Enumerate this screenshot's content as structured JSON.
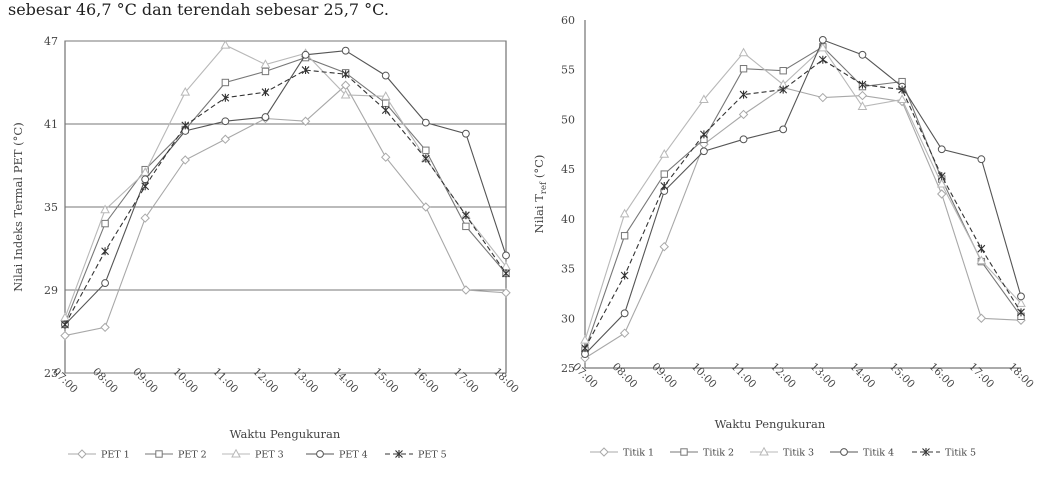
{
  "caption": "sebesar 46,7 °C dan terendah sebesar 25,7 °C.",
  "chart_data": [
    {
      "type": "line",
      "xlabel": "Waktu Pengukuran",
      "ylabel": "Nilai Indeks Termal PET (°C)",
      "categories": [
        "07:00",
        "08:00",
        "09:00",
        "10:00",
        "11:00",
        "12:00",
        "13:00",
        "14:00",
        "15:00",
        "16:00",
        "17:00",
        "18:00"
      ],
      "ylim": [
        23,
        47
      ],
      "yticks": [
        "23",
        "29",
        "35",
        "41",
        "47"
      ],
      "grid": true,
      "legend_position": "bottom",
      "series": [
        {
          "name": "PET 1",
          "marker": "diamond",
          "dash": "solid",
          "color": "#a8a8a8",
          "values": [
            25.7,
            26.3,
            34.2,
            38.4,
            39.9,
            41.4,
            41.2,
            43.8,
            38.6,
            35.0,
            29.0,
            28.8
          ]
        },
        {
          "name": "PET 2",
          "marker": "square",
          "dash": "solid",
          "color": "#777777",
          "values": [
            26.6,
            33.8,
            37.7,
            40.6,
            44.0,
            44.8,
            45.8,
            44.7,
            42.5,
            39.1,
            33.6,
            30.2
          ]
        },
        {
          "name": "PET 3",
          "marker": "triangle",
          "dash": "solid",
          "color": "#b8b8b8",
          "values": [
            27.0,
            34.8,
            37.5,
            43.3,
            46.7,
            45.3,
            46.1,
            43.1,
            43.0,
            38.5,
            34.4,
            30.7
          ]
        },
        {
          "name": "PET 4",
          "marker": "circle",
          "dash": "solid",
          "color": "#555555",
          "values": [
            26.5,
            29.5,
            37.0,
            40.5,
            41.2,
            41.5,
            46.0,
            46.3,
            44.5,
            41.1,
            40.3,
            31.5
          ]
        },
        {
          "name": "PET 5",
          "marker": "star",
          "dash": "dashed",
          "color": "#333333",
          "values": [
            26.5,
            31.8,
            36.5,
            40.9,
            42.9,
            43.3,
            44.9,
            44.6,
            42.0,
            38.5,
            34.4,
            30.2
          ]
        }
      ]
    },
    {
      "type": "line",
      "xlabel": "Waktu Pengukuran",
      "ylabel": "Nilai T",
      "ylabel_sub": "ref",
      "ylabel_unit": " (°C)",
      "categories": [
        "07:00",
        "08:00",
        "09:00",
        "10:00",
        "11:00",
        "12:00",
        "13:00",
        "14:00",
        "15:00",
        "16:00",
        "17:00",
        "18:00"
      ],
      "ylim": [
        25,
        60
      ],
      "yticks": [
        "25",
        "30",
        "35",
        "40",
        "45",
        "50",
        "55",
        "60"
      ],
      "grid": false,
      "legend_position": "bottom",
      "series": [
        {
          "name": "Titik 1",
          "marker": "diamond",
          "dash": "solid",
          "color": "#a8a8a8",
          "values": [
            26.0,
            28.5,
            37.2,
            47.5,
            50.5,
            53.2,
            52.2,
            52.4,
            51.8,
            42.5,
            30.0,
            29.8
          ]
        },
        {
          "name": "Titik 2",
          "marker": "square",
          "dash": "solid",
          "color": "#777777",
          "values": [
            26.8,
            38.3,
            44.5,
            48.0,
            55.1,
            54.9,
            57.3,
            53.3,
            53.8,
            44.0,
            35.7,
            30.2
          ]
        },
        {
          "name": "Titik 3",
          "marker": "triangle",
          "dash": "solid",
          "color": "#b8b8b8",
          "values": [
            27.8,
            40.5,
            46.5,
            52.0,
            56.7,
            53.5,
            57.2,
            51.3,
            52.0,
            43.5,
            35.8,
            31.5
          ]
        },
        {
          "name": "Titik 4",
          "marker": "circle",
          "dash": "solid",
          "color": "#555555",
          "values": [
            26.4,
            30.5,
            42.8,
            46.8,
            48.0,
            49.0,
            58.0,
            56.5,
            53.3,
            47.0,
            46.0,
            32.2
          ]
        },
        {
          "name": "Titik 5",
          "marker": "star",
          "dash": "dashed",
          "color": "#333333",
          "values": [
            27.0,
            34.3,
            43.3,
            48.5,
            52.5,
            53.0,
            56.0,
            53.5,
            53.0,
            44.3,
            37.0,
            30.6
          ]
        }
      ]
    }
  ]
}
